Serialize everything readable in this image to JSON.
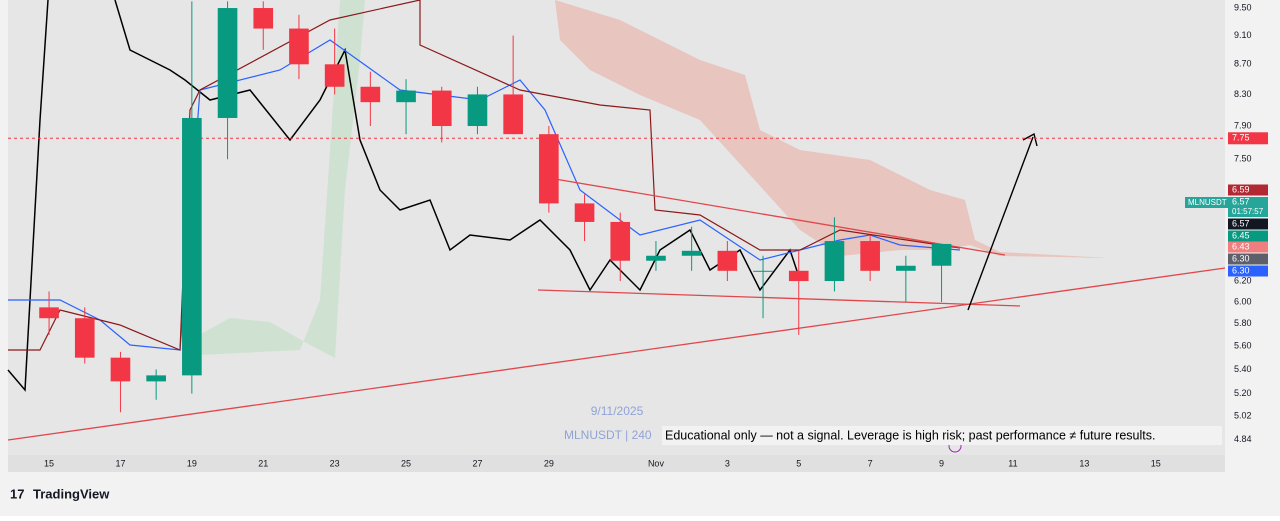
{
  "chart_data": {
    "type": "candlestick",
    "symbol": "MLNUSDT",
    "watermark_date": "9/11/2025",
    "watermark_symbol": "MLNUSDT | 240",
    "disclaimer": "Educational only — not a signal. Leverage is high risk; past performance ≠ future results.",
    "brand": "TradingView",
    "log_scale": true,
    "grid": false,
    "up_color": "#089981",
    "down_color": "#f23645",
    "x": [
      0,
      1,
      2,
      3,
      4,
      5,
      6,
      7,
      8,
      9,
      10,
      11,
      12,
      13,
      14,
      15,
      16,
      17,
      18,
      19,
      20,
      21,
      22,
      23,
      24,
      25
    ],
    "open": [
      5.95,
      5.85,
      5.5,
      5.3,
      5.35,
      8.0,
      9.5,
      9.2,
      8.7,
      8.4,
      8.2,
      8.35,
      7.9,
      8.3,
      7.8,
      7.0,
      6.8,
      6.4,
      6.45,
      6.5,
      6.3,
      6.3,
      6.2,
      6.6,
      6.3,
      6.35
    ],
    "high": [
      6.1,
      5.95,
      5.55,
      5.4,
      9.6,
      9.6,
      9.6,
      9.4,
      9.2,
      8.6,
      8.5,
      8.4,
      8.4,
      9.1,
      7.9,
      7.1,
      6.9,
      6.6,
      6.75,
      6.6,
      6.45,
      6.5,
      6.85,
      6.65,
      6.45,
      6.55
    ],
    "low": [
      5.7,
      5.45,
      5.05,
      5.15,
      5.2,
      7.5,
      8.9,
      8.5,
      8.3,
      7.9,
      7.8,
      7.7,
      7.8,
      7.8,
      6.9,
      6.6,
      6.2,
      6.3,
      6.3,
      6.2,
      5.85,
      5.7,
      6.1,
      6.2,
      6.0,
      6.0
    ],
    "close": [
      5.85,
      5.5,
      5.3,
      5.35,
      8.0,
      9.5,
      9.2,
      8.7,
      8.4,
      8.2,
      8.35,
      7.9,
      8.3,
      7.8,
      7.0,
      6.8,
      6.4,
      6.45,
      6.5,
      6.3,
      6.3,
      6.2,
      6.6,
      6.3,
      6.35,
      6.57
    ],
    "xlim": [
      -1.15,
      32.94
    ],
    "xticks": [
      {
        "value": 0,
        "label": "15"
      },
      {
        "value": 2,
        "label": "17"
      },
      {
        "value": 4,
        "label": "19"
      },
      {
        "value": 6,
        "label": "21"
      },
      {
        "value": 8,
        "label": "23"
      },
      {
        "value": 10,
        "label": "25"
      },
      {
        "value": 12,
        "label": "27"
      },
      {
        "value": 14,
        "label": "29"
      },
      {
        "value": 17,
        "label": "Nov"
      },
      {
        "value": 19,
        "label": "3"
      },
      {
        "value": 21,
        "label": "5"
      },
      {
        "value": 23,
        "label": "7"
      },
      {
        "value": 25,
        "label": "9"
      },
      {
        "value": 27,
        "label": "11"
      },
      {
        "value": 29,
        "label": "13"
      },
      {
        "value": 31,
        "label": "15"
      }
    ],
    "ylim": [
      4.6,
      9.62
    ],
    "yticks": [
      {
        "value": 9.5,
        "label": "9.50"
      },
      {
        "value": 9.1,
        "label": "9.10"
      },
      {
        "value": 8.7,
        "label": "8.70"
      },
      {
        "value": 8.3,
        "label": "8.30"
      },
      {
        "value": 7.9,
        "label": "7.90"
      },
      {
        "value": 7.5,
        "label": "7.50"
      },
      {
        "value": 6.2,
        "label": "6.20"
      },
      {
        "value": 6.0,
        "label": "6.00"
      },
      {
        "value": 5.8,
        "label": "5.80"
      },
      {
        "value": 5.6,
        "label": "5.60"
      },
      {
        "value": 5.4,
        "label": "5.40"
      },
      {
        "value": 5.2,
        "label": "5.20"
      },
      {
        "value": 5.02,
        "label": "5.02"
      },
      {
        "value": 4.84,
        "label": "4.84"
      }
    ],
    "level": {
      "value": 7.75,
      "label": "7.75",
      "color": "#f23645"
    },
    "last_price": {
      "value": 6.57,
      "label": "6.57",
      "countdown": "01:57:57",
      "color": "#26a69a"
    },
    "price_labels": [
      {
        "value": 6.59,
        "label": "6.59",
        "color": "#b22833"
      },
      {
        "value": 6.57,
        "label": "6.57",
        "color": "#131722"
      },
      {
        "value": 6.45,
        "label": "6.45",
        "color": "#089981"
      },
      {
        "value": 6.43,
        "label": "6.43",
        "color": "#ef7f7f"
      },
      {
        "value": 6.3,
        "label": "6.30",
        "color": "#5d606b"
      },
      {
        "value": 6.3,
        "label": "6.30",
        "color": "#2962ff"
      }
    ]
  }
}
